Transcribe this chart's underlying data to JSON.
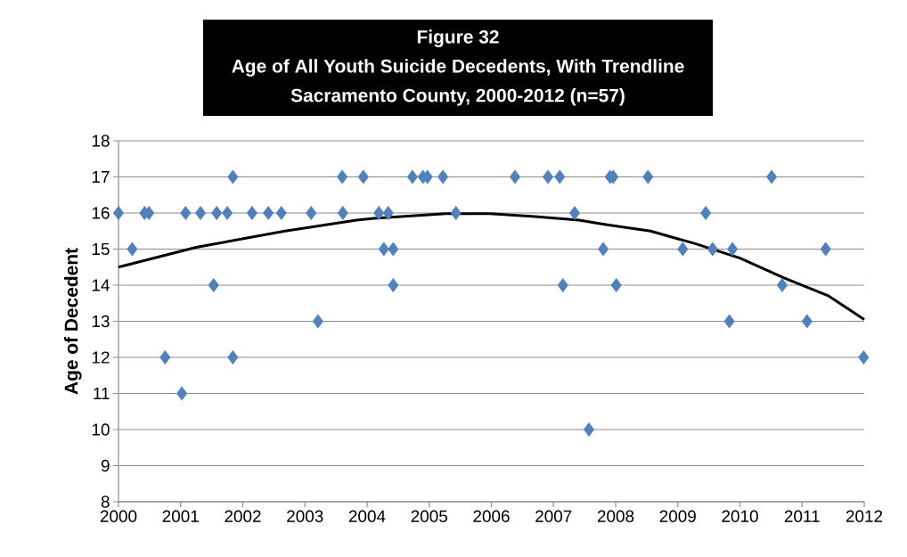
{
  "chart_data": {
    "type": "scatter",
    "title": "Figure 32",
    "subtitle": "Age of All Youth Suicide Decedents, With Trendline",
    "annotations": [
      "Sacramento County, 2000-2012 (n=57)"
    ],
    "ylabel": "Age of Decedent",
    "xlim": [
      2000,
      2012
    ],
    "xticks": [
      2000,
      2001,
      2002,
      2003,
      2004,
      2005,
      2006,
      2007,
      2008,
      2009,
      2010,
      2011,
      2012
    ],
    "ylim": [
      8,
      18
    ],
    "yticks": [
      8,
      9,
      10,
      11,
      12,
      13,
      14,
      15,
      16,
      17,
      18
    ],
    "grid": "y",
    "series": [
      {
        "marker": "diamond",
        "color": "#4f81bd",
        "x": [
          2000.0,
          2000.22,
          2000.42,
          2000.49,
          2000.75,
          2001.02,
          2001.08,
          2001.32,
          2001.53,
          2001.58,
          2001.75,
          2001.84,
          2001.84,
          2002.15,
          2002.41,
          2002.62,
          2003.1,
          2003.21,
          2003.6,
          2003.61,
          2003.94,
          2004.19,
          2004.27,
          2004.34,
          2004.42,
          2004.42,
          2004.73,
          2004.9,
          2004.97,
          2005.22,
          2005.43,
          2006.38,
          2006.91,
          2007.1,
          2007.15,
          2007.34,
          2007.57,
          2007.8,
          2007.91,
          2007.96,
          2008.01,
          2008.52,
          2009.08,
          2009.45,
          2009.56,
          2009.83,
          2009.88,
          2010.51,
          2010.68,
          2011.08,
          2011.38,
          2011.99
        ],
        "values": [
          16,
          15,
          16,
          16,
          12,
          11,
          16,
          16,
          14,
          16,
          16,
          17,
          12,
          16,
          16,
          16,
          16,
          13,
          17,
          16,
          17,
          16,
          15,
          16,
          15,
          14,
          17,
          17,
          17,
          17,
          16,
          17,
          17,
          17,
          14,
          16,
          10,
          15,
          17,
          17,
          14,
          17,
          15,
          16,
          15,
          13,
          15,
          17,
          14,
          13,
          15,
          12
        ]
      },
      {
        "type": "line",
        "marker": "none",
        "line_style": "solid",
        "color": "#000000",
        "x": [
          2000,
          2001.25,
          2002.68,
          2003.83,
          2004.11,
          2005.26,
          2005.98,
          2006.7,
          2007.41,
          2007.84,
          2008.56,
          2009.28,
          2010.0,
          2010.71,
          2011.43,
          2012
        ],
        "values": [
          14.5,
          15.05,
          15.5,
          15.8,
          15.85,
          15.98,
          15.98,
          15.9,
          15.8,
          15.68,
          15.5,
          15.15,
          14.75,
          14.2,
          13.7,
          13.05
        ]
      }
    ]
  }
}
